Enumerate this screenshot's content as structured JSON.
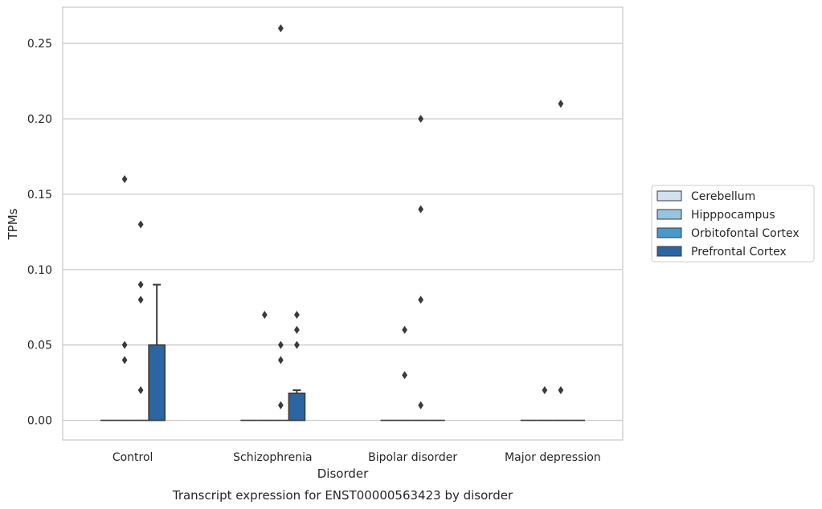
{
  "chart_data": {
    "type": "box",
    "xlabel": "Disorder",
    "ylabel": "TPMs",
    "caption": "Transcript expression for ENST00000563423 by disorder",
    "categories": [
      "Control",
      "Schizophrenia",
      "Bipolar disorder",
      "Major depression"
    ],
    "ylim": [
      -0.013,
      0.274
    ],
    "yticks": [
      0.0,
      0.05,
      0.1,
      0.15,
      0.2,
      0.25
    ],
    "ytick_labels": [
      "0.00",
      "0.05",
      "0.10",
      "0.15",
      "0.20",
      "0.25"
    ],
    "grid": true,
    "legend_position": "right",
    "series": [
      {
        "name": "Cerebellum",
        "color": "#d0e1f2",
        "boxes": [
          {
            "category": "Control",
            "q1": 0,
            "median": 0,
            "q3": 0,
            "whisker_low": 0,
            "whisker_high": 0,
            "outliers": []
          },
          {
            "category": "Schizophrenia",
            "q1": 0,
            "median": 0,
            "q3": 0,
            "whisker_low": 0,
            "whisker_high": 0,
            "outliers": []
          },
          {
            "category": "Bipolar disorder",
            "q1": 0,
            "median": 0,
            "q3": 0,
            "whisker_low": 0,
            "whisker_high": 0,
            "outliers": []
          },
          {
            "category": "Major depression",
            "q1": 0,
            "median": 0,
            "q3": 0,
            "whisker_low": 0,
            "whisker_high": 0,
            "outliers": []
          }
        ]
      },
      {
        "name": "Hipppocampus",
        "color": "#94c4df",
        "boxes": [
          {
            "category": "Control",
            "q1": 0,
            "median": 0,
            "q3": 0,
            "whisker_low": 0,
            "whisker_high": 0,
            "outliers": [
              0.16,
              0.05,
              0.04
            ]
          },
          {
            "category": "Schizophrenia",
            "q1": 0,
            "median": 0,
            "q3": 0,
            "whisker_low": 0,
            "whisker_high": 0,
            "outliers": [
              0.07
            ]
          },
          {
            "category": "Bipolar disorder",
            "q1": 0,
            "median": 0,
            "q3": 0,
            "whisker_low": 0,
            "whisker_high": 0,
            "outliers": [
              0.06,
              0.03
            ]
          },
          {
            "category": "Major depression",
            "q1": 0,
            "median": 0,
            "q3": 0,
            "whisker_low": 0,
            "whisker_high": 0,
            "outliers": [
              0.02
            ]
          }
        ]
      },
      {
        "name": "Orbitofontal Cortex",
        "color": "#4a98c9",
        "boxes": [
          {
            "category": "Control",
            "q1": 0,
            "median": 0,
            "q3": 0,
            "whisker_low": 0,
            "whisker_high": 0,
            "outliers": [
              0.09,
              0.08,
              0.13,
              0.02
            ]
          },
          {
            "category": "Schizophrenia",
            "q1": 0,
            "median": 0,
            "q3": 0,
            "whisker_low": 0,
            "whisker_high": 0,
            "outliers": [
              0.26,
              0.05,
              0.04,
              0.01
            ]
          },
          {
            "category": "Bipolar disorder",
            "q1": 0,
            "median": 0,
            "q3": 0,
            "whisker_low": 0,
            "whisker_high": 0,
            "outliers": [
              0.08,
              0.2,
              0.01,
              0.14
            ]
          },
          {
            "category": "Major depression",
            "q1": 0,
            "median": 0,
            "q3": 0,
            "whisker_low": 0,
            "whisker_high": 0,
            "outliers": [
              0.21,
              0.02
            ]
          }
        ]
      },
      {
        "name": "Prefrontal Cortex",
        "color": "#2b66a3",
        "boxes": [
          {
            "category": "Control",
            "q1": 0,
            "median": 0,
            "q3": 0.05,
            "whisker_low": 0,
            "whisker_high": 0.09,
            "outliers": []
          },
          {
            "category": "Schizophrenia",
            "q1": 0,
            "median": 0,
            "q3": 0.018,
            "whisker_low": 0,
            "whisker_high": 0.02,
            "outliers": [
              0.07,
              0.06,
              0.05
            ]
          },
          {
            "category": "Bipolar disorder",
            "q1": 0,
            "median": 0,
            "q3": 0,
            "whisker_low": 0,
            "whisker_high": 0,
            "outliers": []
          },
          {
            "category": "Major depression",
            "q1": 0,
            "median": 0,
            "q3": 0,
            "whisker_low": 0,
            "whisker_high": 0,
            "outliers": []
          }
        ]
      }
    ]
  }
}
